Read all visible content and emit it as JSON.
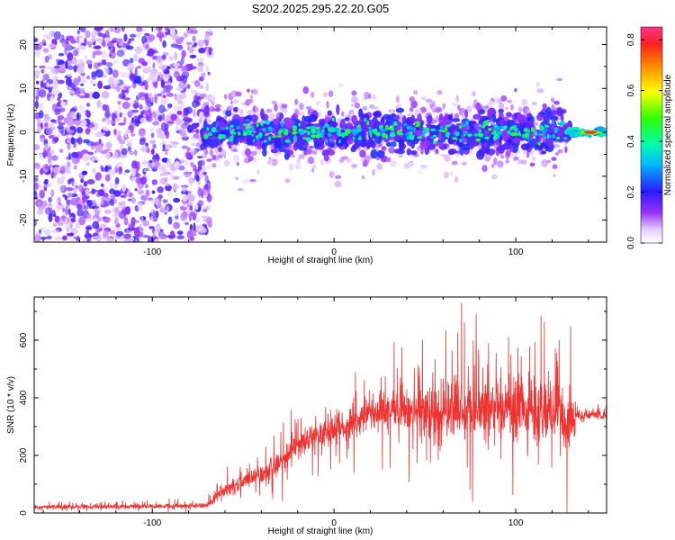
{
  "title": "S202.2025.295.22.20.G05",
  "chart_data": [
    {
      "type": "heatmap",
      "xlabel": "Height of straight line (km)",
      "ylabel": "Frequency (Hz)",
      "xlim": [
        -165,
        150
      ],
      "ylim": [
        -25,
        24
      ],
      "xticks": [
        -100,
        0,
        100
      ],
      "yticks": [
        -20,
        -10,
        0,
        10,
        20
      ],
      "colorbar": {
        "label": "Normalized spectral amplitude",
        "range": [
          0,
          0.85
        ],
        "ticks": [
          "0.0",
          "0.2",
          "0.4",
          "0.6",
          "0.8"
        ],
        "tick_values": [
          0,
          0.2,
          0.4,
          0.6,
          0.8
        ]
      },
      "features": {
        "noise_region_x": [
          -165,
          -72
        ],
        "signal_band_center_hz": 0,
        "signal_band_halfwidth_hz": 4,
        "strong_tone_x": [
          128,
          150
        ],
        "strong_tone_amplitude": 0.85
      }
    },
    {
      "type": "line",
      "xlabel": "Height of straight line (km)",
      "ylabel": "SNR (10 * v/v)",
      "xlim": [
        -165,
        150
      ],
      "ylim": [
        0,
        750
      ],
      "xticks": [
        -100,
        0,
        100
      ],
      "yticks": [
        0,
        200,
        400,
        600
      ],
      "series": [
        {
          "name": "SNR",
          "color": "#ee3333",
          "envelope": {
            "x": [
              -165,
              -70,
              -60,
              -40,
              -30,
              -20,
              -10,
              0,
              20,
              40,
              60,
              80,
              100,
              120,
              130,
              133,
              150
            ],
            "median": [
              20,
              25,
              80,
              130,
              170,
              230,
              270,
              290,
              340,
              360,
              360,
              360,
              360,
              350,
              320,
              340,
              340
            ],
            "spread": [
              12,
              15,
              50,
              70,
              80,
              80,
              90,
              90,
              100,
              160,
              180,
              190,
              180,
              200,
              200,
              20,
              25
            ]
          },
          "max_value": 750
        }
      ]
    }
  ]
}
